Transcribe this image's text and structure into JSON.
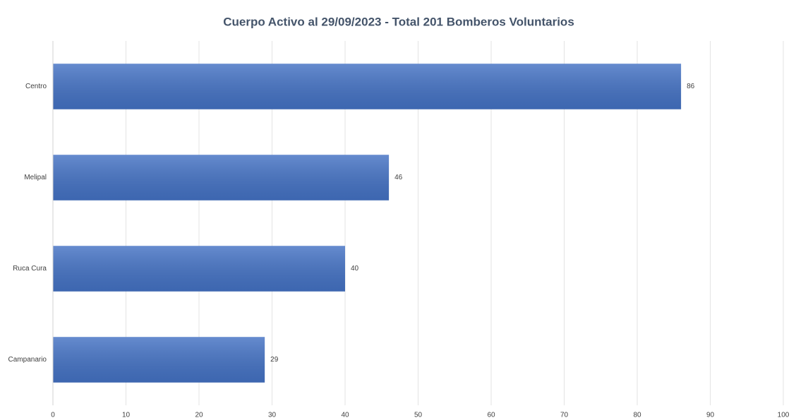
{
  "chart_data": {
    "type": "bar",
    "orientation": "horizontal",
    "title": "Cuerpo Activo al 29/09/2023 - Total 201 Bomberos Voluntarios",
    "categories": [
      "Centro",
      "Melipal",
      "Ruca Cura",
      "Campanario"
    ],
    "values": [
      86,
      46,
      40,
      29
    ],
    "color": "#4472c4",
    "xlim": [
      0,
      100
    ],
    "xticks": [
      0,
      10,
      20,
      30,
      40,
      50,
      60,
      70,
      80,
      90,
      100
    ],
    "grid": true
  }
}
